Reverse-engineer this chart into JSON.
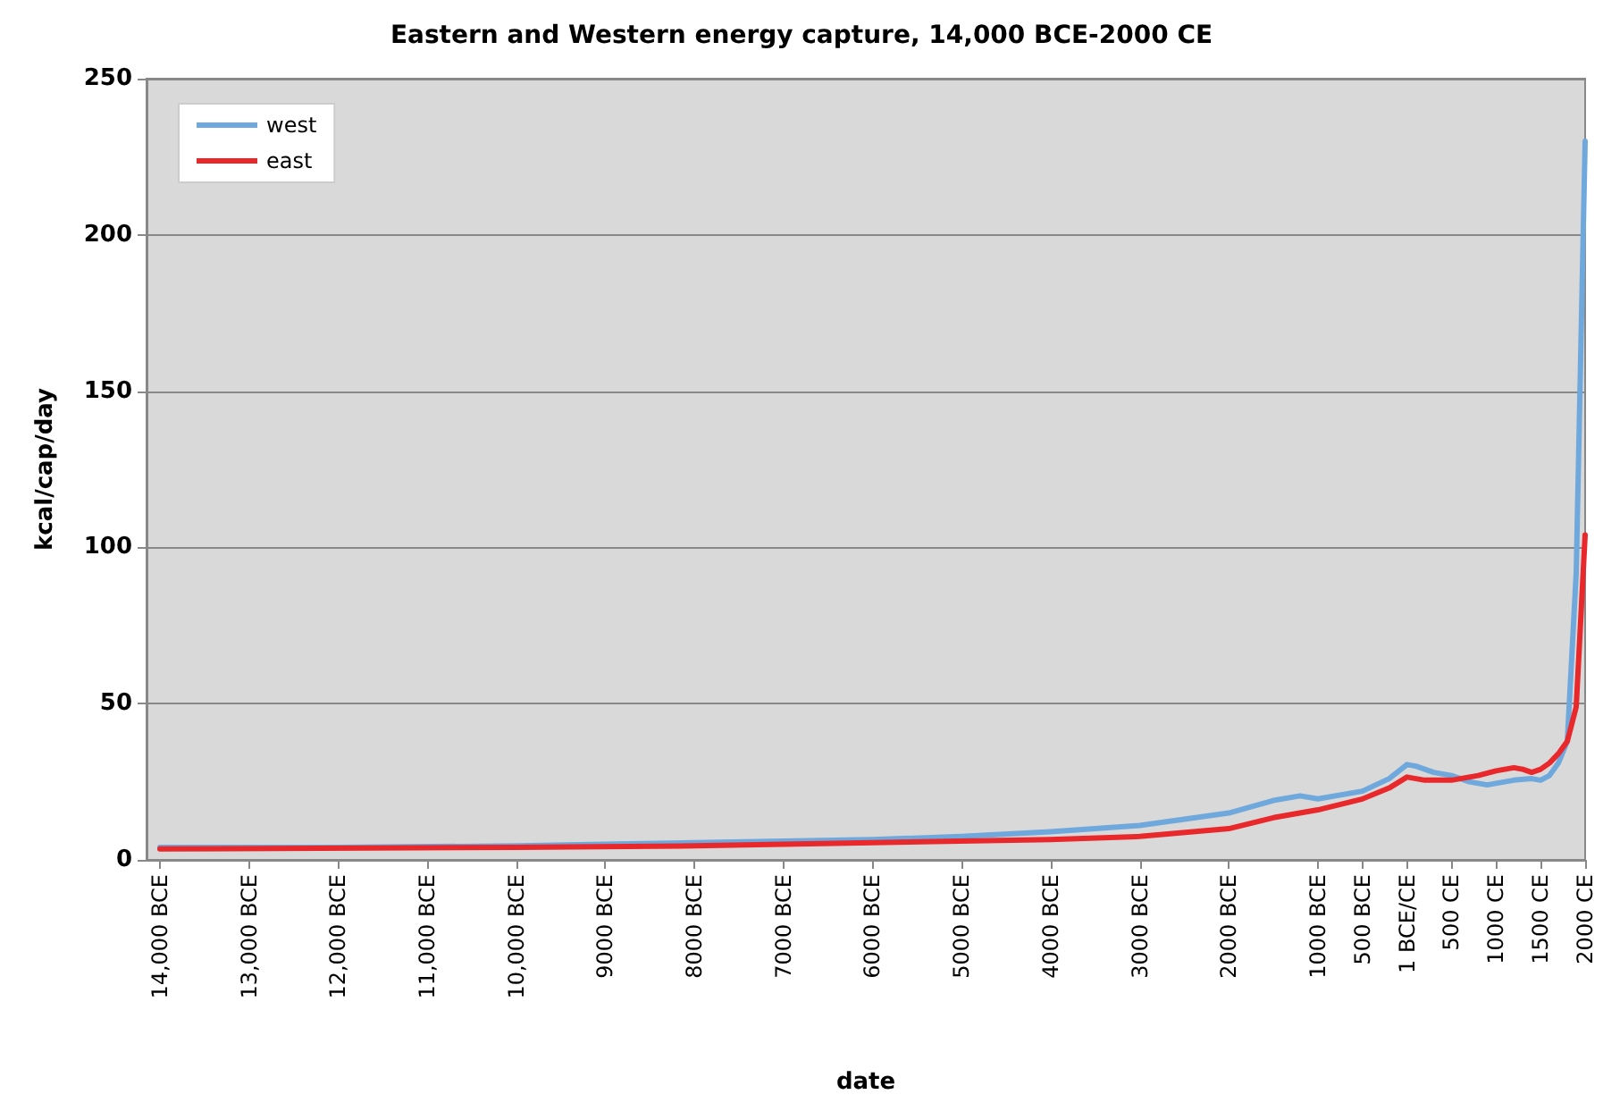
{
  "chart_data": {
    "type": "line",
    "title": "Eastern and Western energy capture, 14,000 BCE-2000 CE",
    "xlabel": "date",
    "ylabel": "kcal/cap/day",
    "xlim": [
      -14150,
      2000
    ],
    "ylim": [
      0,
      250
    ],
    "yticks": [
      0,
      50,
      100,
      150,
      200,
      250
    ],
    "xticks": [
      {
        "value": -14000,
        "label": "14,000 BCE"
      },
      {
        "value": -13000,
        "label": "13,000 BCE"
      },
      {
        "value": -12000,
        "label": "12,000 BCE"
      },
      {
        "value": -11000,
        "label": "11,000 BCE"
      },
      {
        "value": -10000,
        "label": "10,000 BCE"
      },
      {
        "value": -9000,
        "label": "9000 BCE"
      },
      {
        "value": -8000,
        "label": "8000 BCE"
      },
      {
        "value": -7000,
        "label": "7000 BCE"
      },
      {
        "value": -6000,
        "label": "6000 BCE"
      },
      {
        "value": -5000,
        "label": "5000 BCE"
      },
      {
        "value": -4000,
        "label": "4000 BCE"
      },
      {
        "value": -3000,
        "label": "3000 BCE"
      },
      {
        "value": -2000,
        "label": "2000 BCE"
      },
      {
        "value": -1000,
        "label": "1000 BCE"
      },
      {
        "value": -500,
        "label": "500 BCE"
      },
      {
        "value": 1,
        "label": "1 BCE/CE"
      },
      {
        "value": 500,
        "label": "500 CE"
      },
      {
        "value": 1000,
        "label": "1000 CE"
      },
      {
        "value": 1500,
        "label": "1500 CE"
      },
      {
        "value": 2000,
        "label": "2000 CE"
      }
    ],
    "grid": "y",
    "legend": "top left",
    "marker": "none",
    "line_style": "solid",
    "series": [
      {
        "name": "west",
        "color": "#6fa8dc",
        "x": [
          -14000,
          -12000,
          -10000,
          -9000,
          -8000,
          -7000,
          -6000,
          -5000,
          -4000,
          -3000,
          -2000,
          -1500,
          -1200,
          -1000,
          -500,
          -200,
          0,
          100,
          300,
          500,
          700,
          900,
          1200,
          1400,
          1500,
          1600,
          1700,
          1800,
          1900,
          2000
        ],
        "values": [
          4,
          4,
          4.5,
          5,
          5.5,
          6,
          6.5,
          7.5,
          9,
          11,
          15,
          19,
          20.5,
          19.5,
          22,
          26,
          30.5,
          30,
          28,
          27,
          25,
          24,
          25.5,
          26,
          25.5,
          27,
          31,
          38,
          92,
          230
        ]
      },
      {
        "name": "east",
        "color": "#e8282b",
        "x": [
          -14000,
          -10000,
          -8000,
          -6000,
          -4000,
          -3000,
          -2000,
          -1500,
          -1000,
          -500,
          -200,
          0,
          200,
          500,
          800,
          1000,
          1200,
          1300,
          1400,
          1500,
          1600,
          1700,
          1800,
          1900,
          2000
        ],
        "values": [
          3.5,
          4,
          4.5,
          5.5,
          6.5,
          7.5,
          10,
          13.5,
          16,
          19.5,
          23,
          26.5,
          25.5,
          25.5,
          27,
          28.5,
          29.5,
          29,
          28,
          29,
          31,
          34,
          38,
          49,
          104
        ]
      }
    ]
  }
}
